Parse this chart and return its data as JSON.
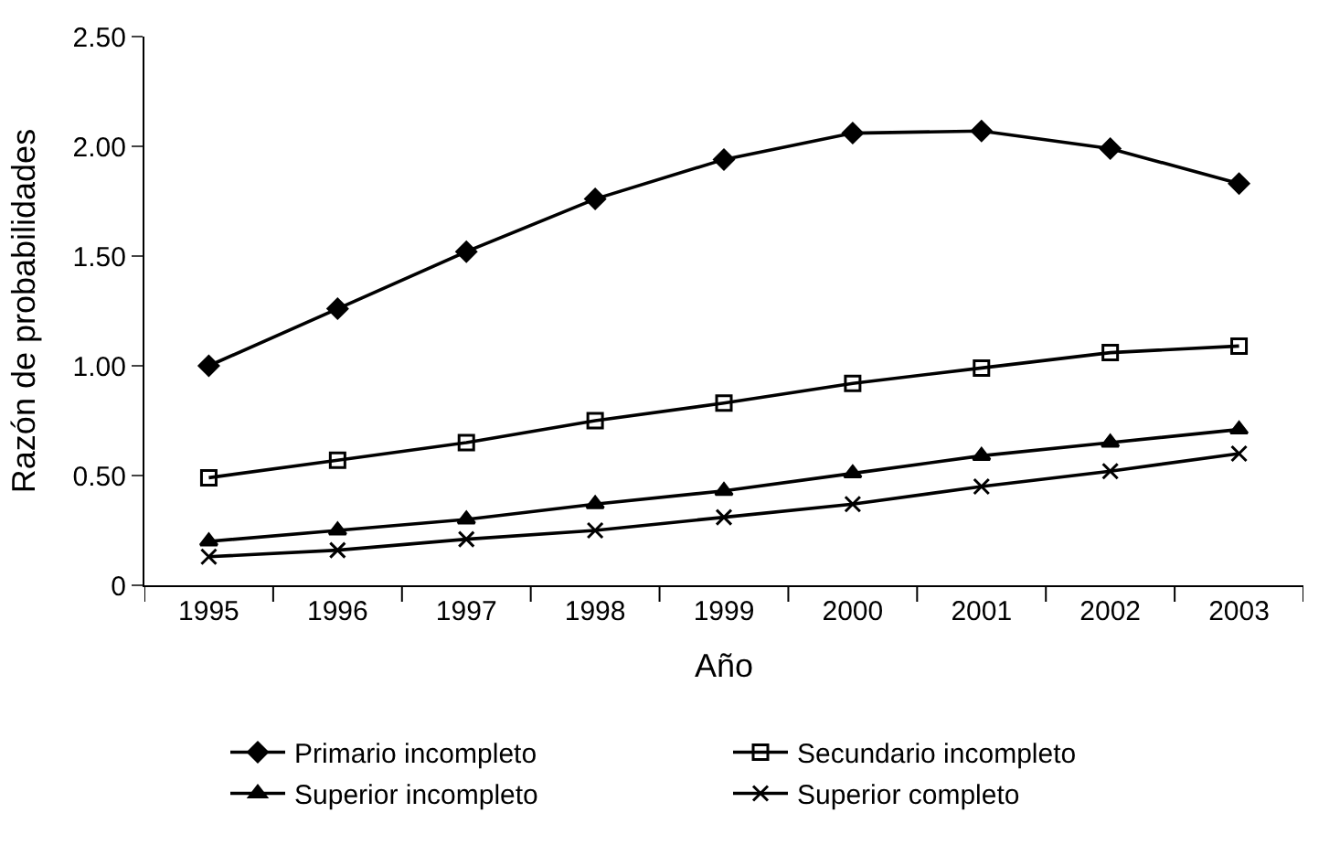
{
  "chart_data": {
    "type": "line",
    "xlabel": "Año",
    "ylabel": "Razón de probabilidades",
    "categories": [
      "1995",
      "1996",
      "1997",
      "1998",
      "1999",
      "2000",
      "2001",
      "2002",
      "2003"
    ],
    "ylim": [
      0,
      2.5
    ],
    "yticks": [
      0,
      {
        "value": 0.5,
        "label": "0.50"
      },
      {
        "value": 1,
        "label": "1.00"
      },
      {
        "value": 1.5,
        "label": "1.50"
      },
      {
        "value": 2,
        "label": "2.00"
      },
      {
        "value": 2.5,
        "label": "2.50"
      }
    ],
    "legend": "bottom",
    "series": [
      {
        "name": "Primario incompleto",
        "color": "#000000",
        "marker": "diamond",
        "values": [
          1.0,
          1.26,
          1.52,
          1.76,
          1.94,
          2.06,
          2.07,
          1.99,
          1.83
        ]
      },
      {
        "name": "Secundario incompleto",
        "color": "#000000",
        "marker": "square",
        "values": [
          0.49,
          0.57,
          0.65,
          0.75,
          0.83,
          0.92,
          0.99,
          1.06,
          1.09
        ]
      },
      {
        "name": "Superior incompleto",
        "color": "#000000",
        "marker": "triangle",
        "values": [
          0.2,
          0.25,
          0.3,
          0.37,
          0.43,
          0.51,
          0.59,
          0.65,
          0.71
        ]
      },
      {
        "name": "Superior completo",
        "color": "#000000",
        "marker": "cross",
        "values": [
          0.13,
          0.16,
          0.21,
          0.25,
          0.31,
          0.37,
          0.45,
          0.52,
          0.6
        ]
      }
    ]
  }
}
